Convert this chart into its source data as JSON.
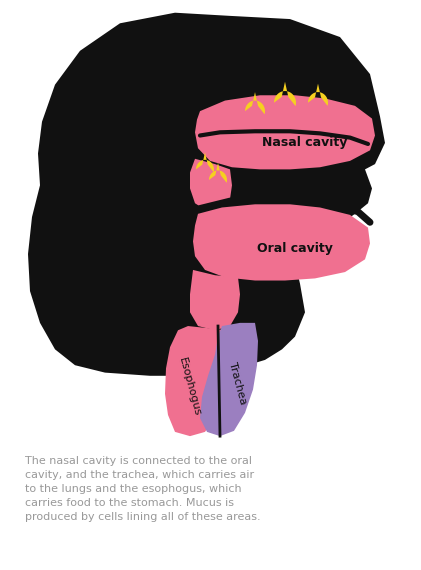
{
  "background_color": "#ffffff",
  "head_color": "#111111",
  "pink_color": "#f07090",
  "trachea_color": "#9b7fc0",
  "mucus_color": "#f5d020",
  "label_color": "#111111",
  "caption_color": "#999999",
  "text_nasal": "Nasal cavity",
  "text_oral": "Oral cavity",
  "text_esophagus": "Esophogus",
  "text_trachea": "Trachea",
  "caption": "The nasal cavity is connected to the oral\ncavity, and the trachea, which carries air\nto the lungs and the esophogus, which\ncarries food to the stomach. Mucus is\nproduced by cells lining all of these areas.",
  "fig_width": 4.21,
  "fig_height": 5.7
}
